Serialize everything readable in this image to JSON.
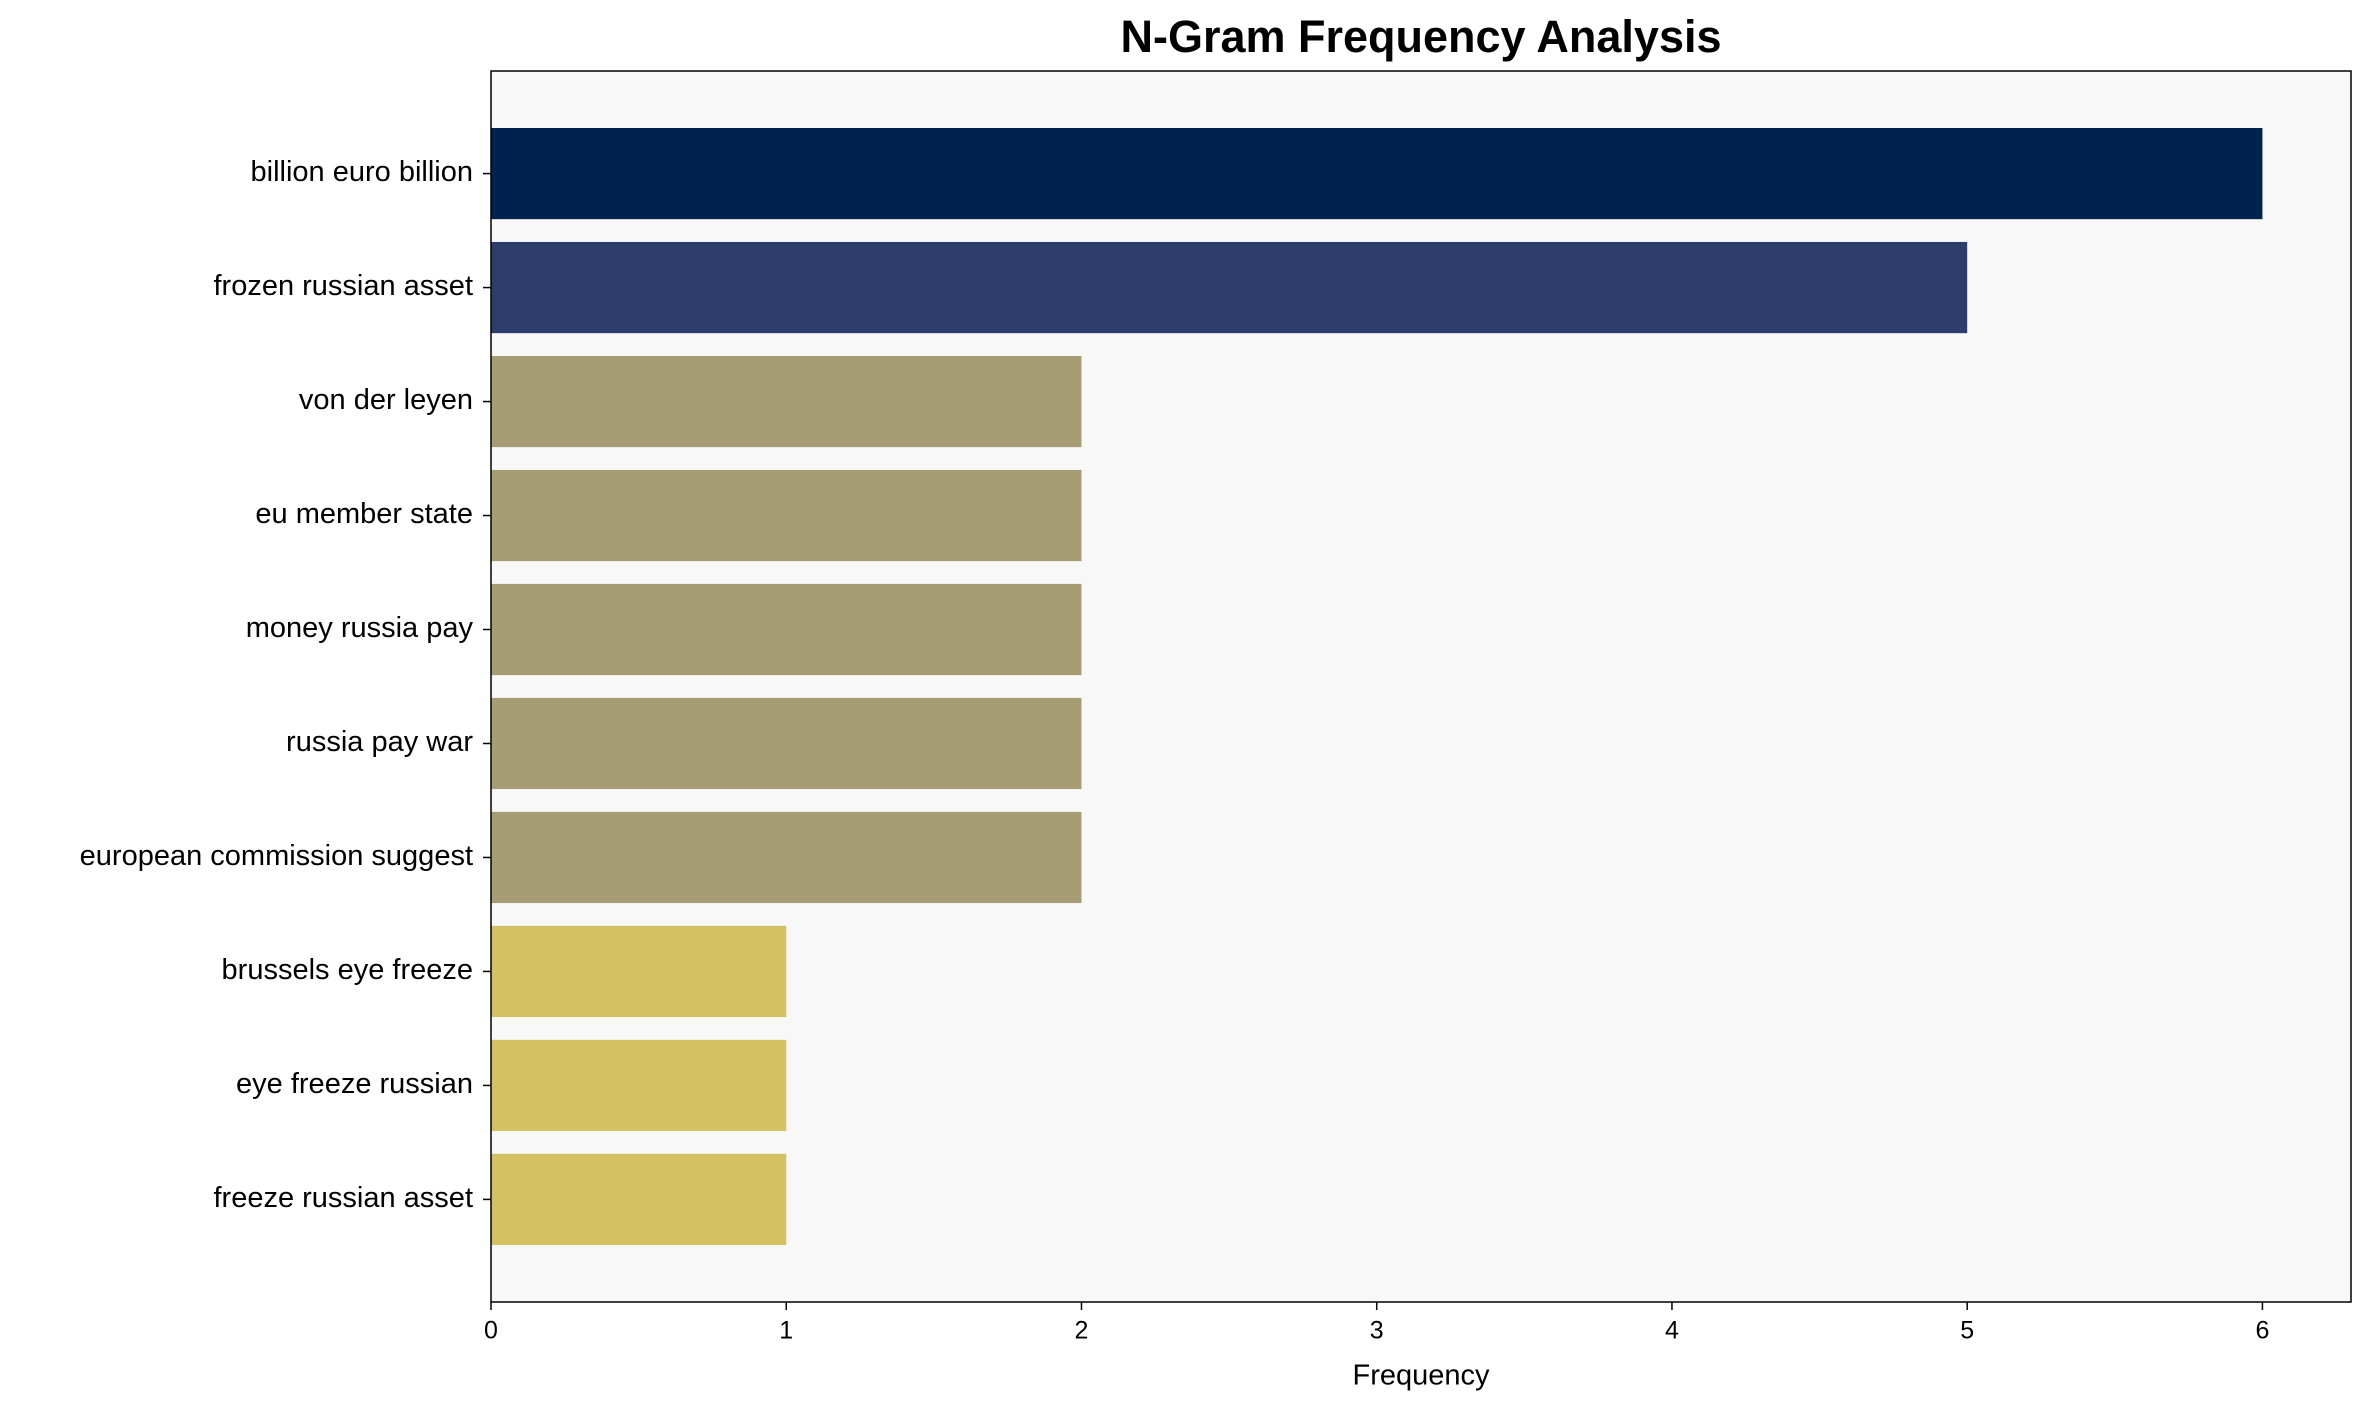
{
  "chart_data": {
    "type": "barh",
    "title": "N-Gram Frequency Analysis",
    "x_label": "Frequency",
    "categories": [
      "billion euro billion",
      "frozen russian asset",
      "von der leyen",
      "eu member state",
      "money russia pay",
      "russia pay war",
      "european commission suggest",
      "brussels eye freeze",
      "eye freeze russian",
      "freeze russian asset"
    ],
    "values": [
      6,
      5,
      2,
      2,
      2,
      2,
      2,
      1,
      1,
      1
    ],
    "colors": [
      "#00224e",
      "#2c3d6c",
      "#a69d75",
      "#a69d75",
      "#a69d75",
      "#a69d75",
      "#a69d75",
      "#d3c164",
      "#d3c164",
      "#d3c164"
    ],
    "xlim": [
      0,
      6.3
    ],
    "xticks": [
      0,
      1,
      2,
      3,
      4,
      5,
      6
    ],
    "grid": false
  }
}
